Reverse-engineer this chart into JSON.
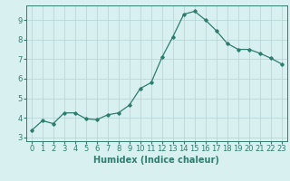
{
  "x": [
    0,
    1,
    2,
    3,
    4,
    5,
    6,
    7,
    8,
    9,
    10,
    11,
    12,
    13,
    14,
    15,
    16,
    17,
    18,
    19,
    20,
    21,
    22,
    23
  ],
  "y": [
    3.35,
    3.85,
    3.7,
    4.25,
    4.25,
    3.95,
    3.9,
    4.15,
    4.25,
    4.65,
    5.5,
    5.8,
    7.1,
    8.15,
    9.3,
    9.45,
    9.0,
    8.45,
    7.8,
    7.5,
    7.5,
    7.3,
    7.05,
    6.75
  ],
  "line_color": "#2e7d6e",
  "marker": "D",
  "marker_size": 1.8,
  "linewidth": 0.9,
  "bg_color": "#d8f0f0",
  "grid_color": "#b8d8d8",
  "xlabel": "Humidex (Indice chaleur)",
  "xlim": [
    -0.5,
    23.5
  ],
  "ylim": [
    2.8,
    9.75
  ],
  "yticks": [
    3,
    4,
    5,
    6,
    7,
    8,
    9
  ],
  "xticks": [
    0,
    1,
    2,
    3,
    4,
    5,
    6,
    7,
    8,
    9,
    10,
    11,
    12,
    13,
    14,
    15,
    16,
    17,
    18,
    19,
    20,
    21,
    22,
    23
  ],
  "ax_color": "#2e7d6e",
  "tick_label_fontsize": 6.0,
  "xlabel_fontsize": 7.0
}
